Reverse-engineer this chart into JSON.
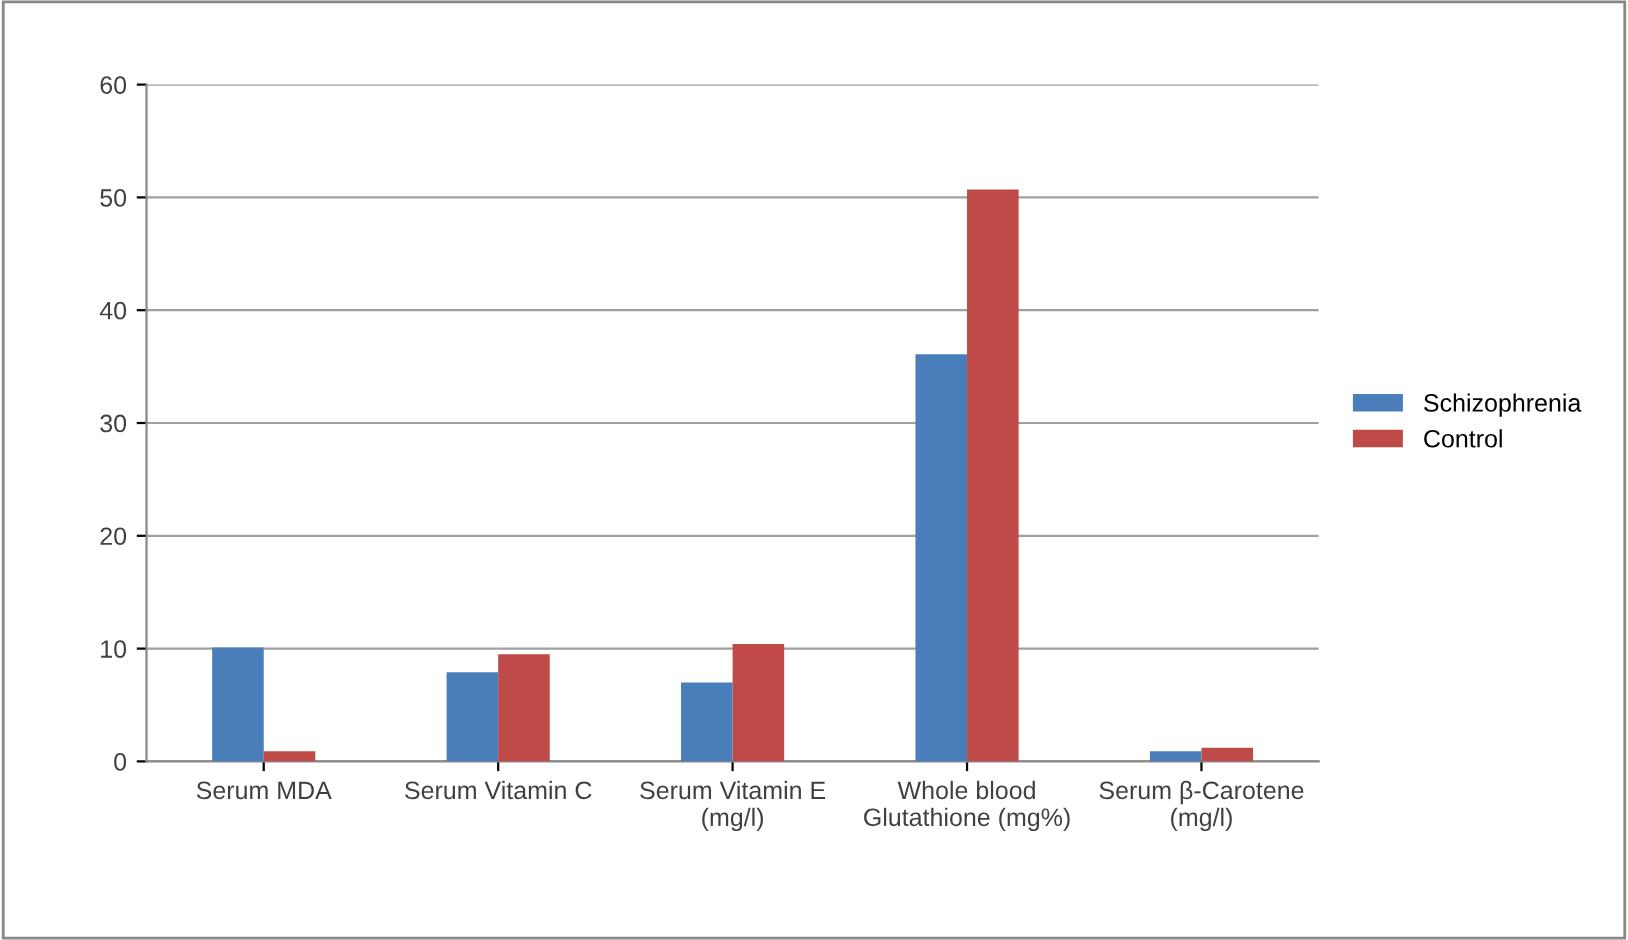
{
  "chart_data": {
    "type": "bar",
    "categories": [
      "Serum MDA",
      "Serum Vitamin C",
      "Serum Vitamin E (mg/l)",
      "Whole blood Glutathione (mg%)",
      "Serum β-Carotene (mg/l)"
    ],
    "series": [
      {
        "name": "Schizophrenia",
        "color": "#4a7ebb",
        "values": [
          10.1,
          7.9,
          7.0,
          36.1,
          0.9
        ]
      },
      {
        "name": "Control",
        "color": "#be4b48",
        "values": [
          0.9,
          9.5,
          10.4,
          50.7,
          1.2
        ]
      }
    ],
    "ylim": [
      0,
      60
    ],
    "yticks": [
      0,
      10,
      20,
      30,
      40,
      50,
      60
    ],
    "grid": "y",
    "legend": "right"
  }
}
